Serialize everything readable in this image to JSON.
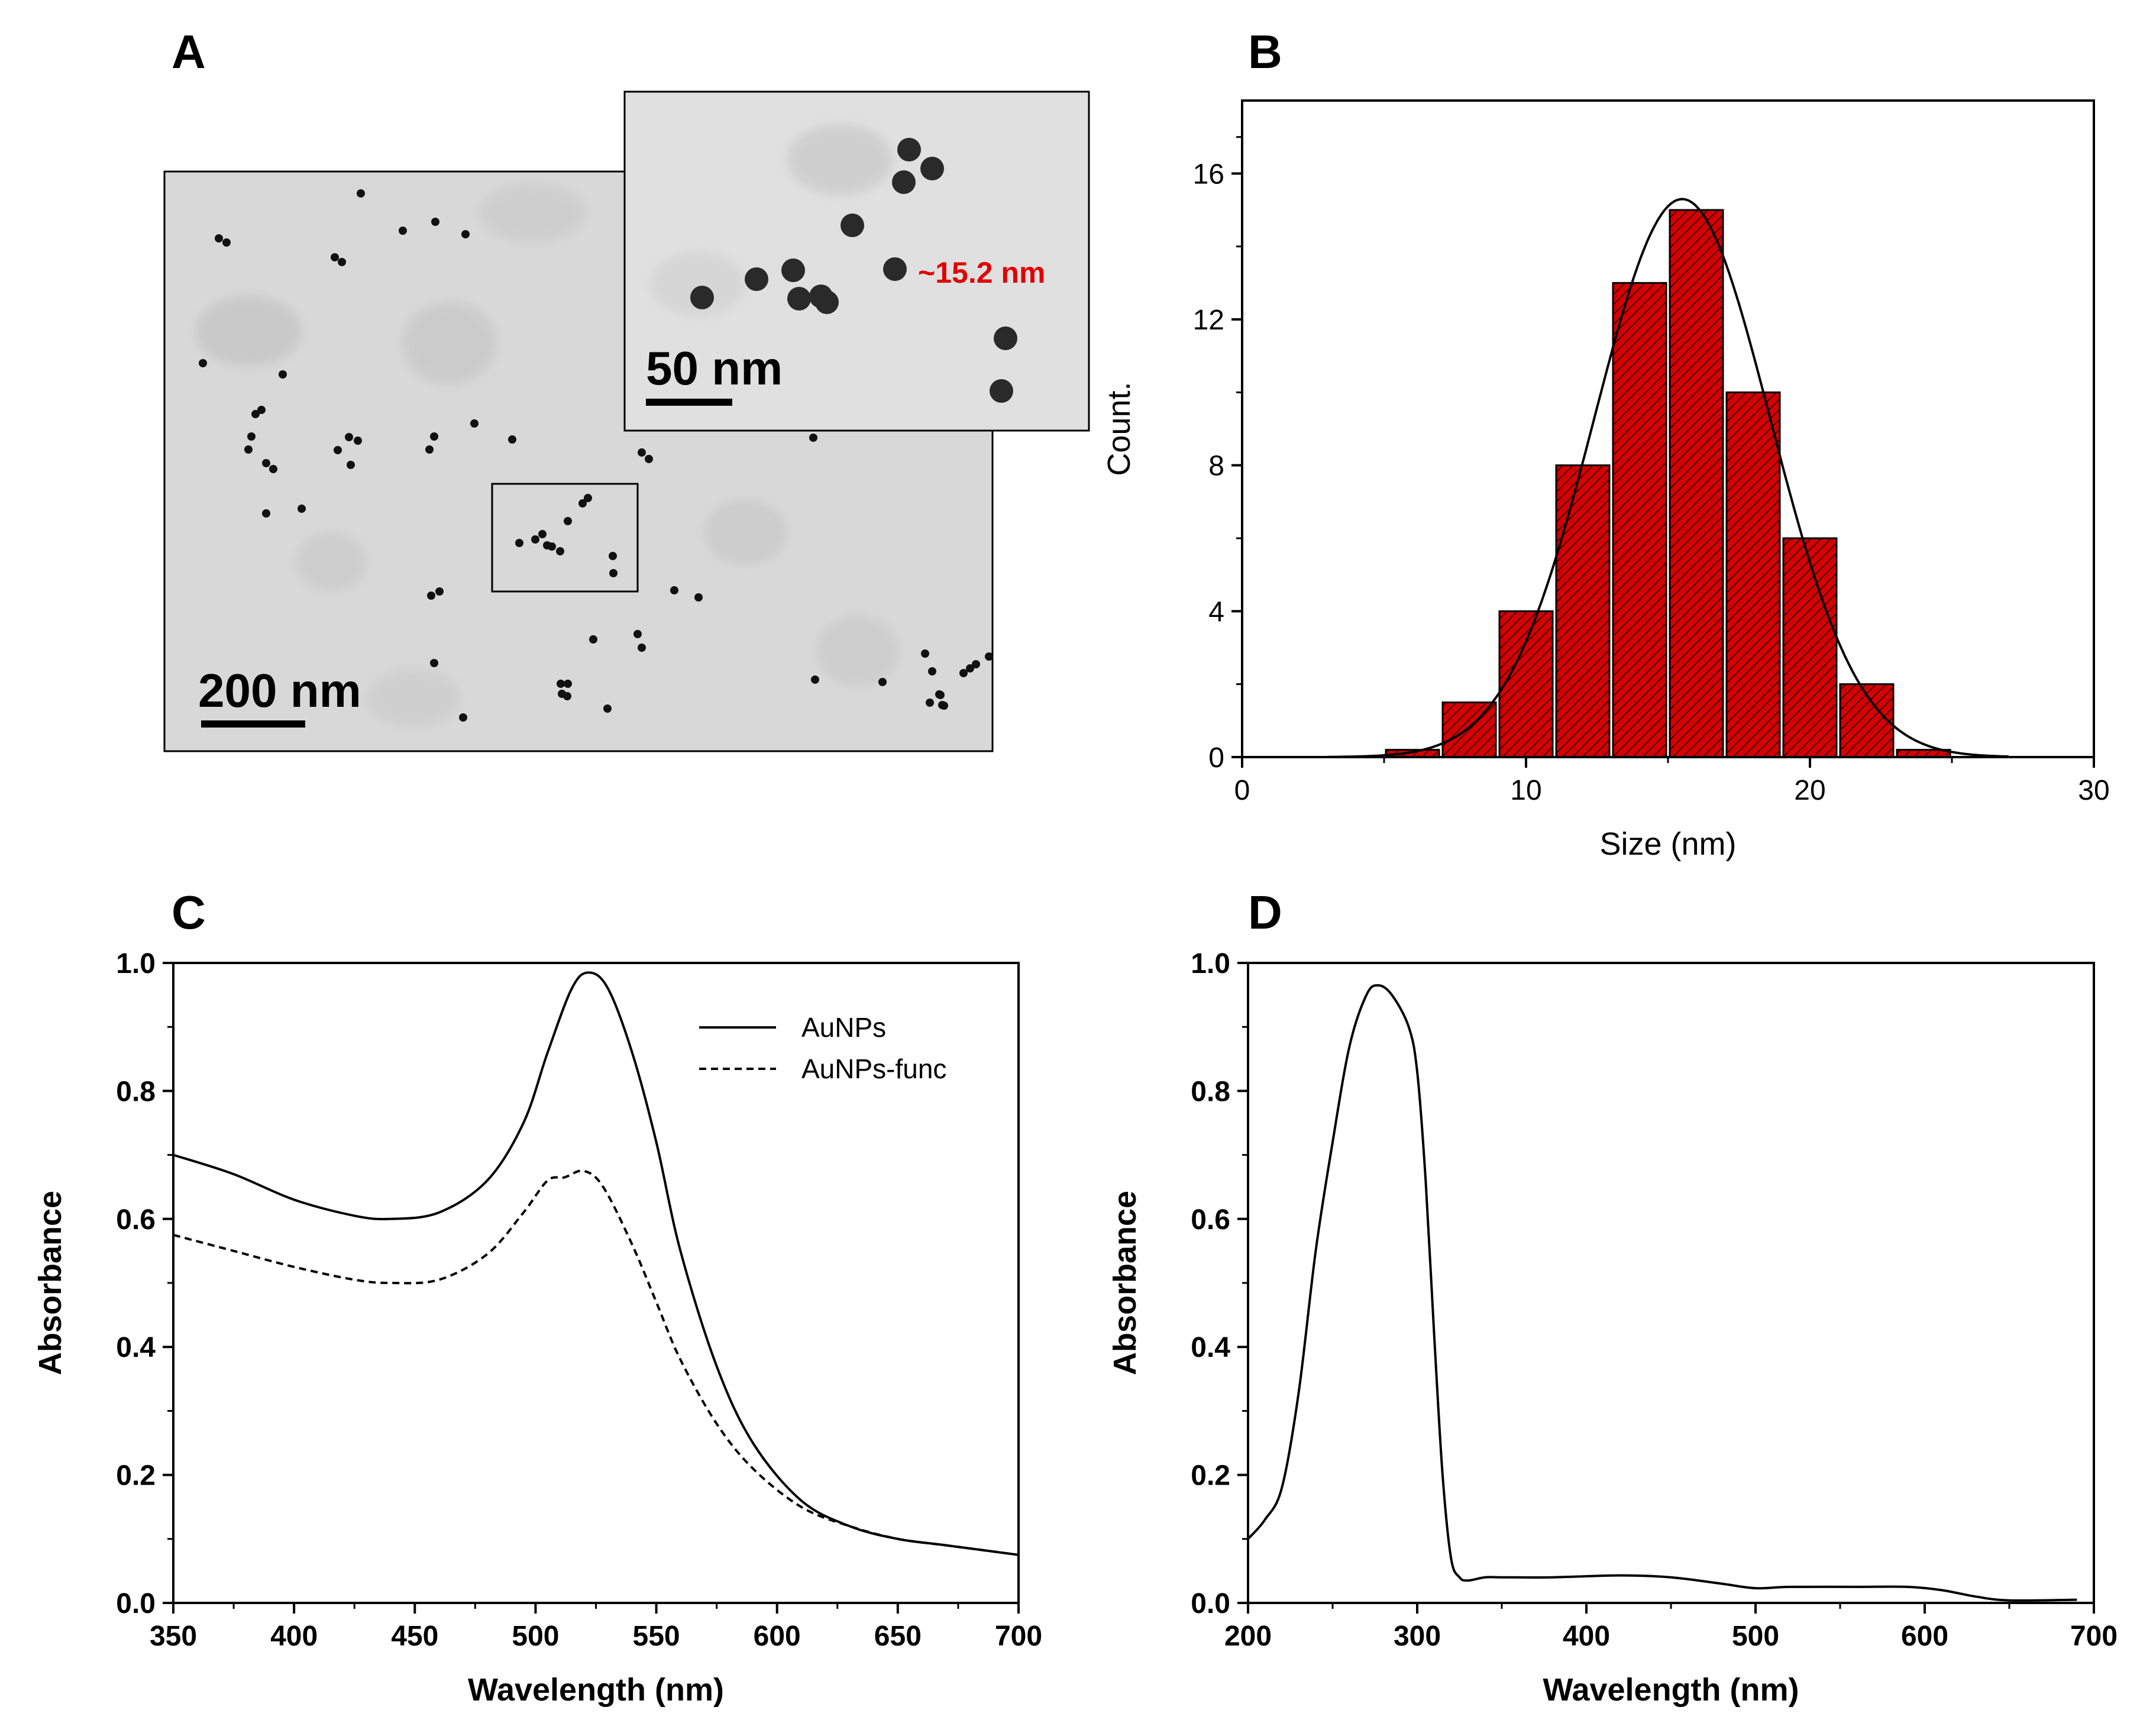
{
  "panels": {
    "a": {
      "letter": "A",
      "scale_bar_main": "200 nm",
      "scale_bar_inset": "50 nm",
      "particle_size_label": "~15.2 nm"
    },
    "b": {
      "letter": "B"
    },
    "c": {
      "letter": "C"
    },
    "d": {
      "letter": "D"
    }
  },
  "colors": {
    "bar_fill": "#d40000",
    "bar_stroke": "#000000",
    "line": "#000000",
    "size_label": "#e00000",
    "tem_background": "#d9d9d9"
  },
  "chart_data": [
    {
      "id": "B",
      "type": "bar",
      "title": "",
      "xlabel": "Size (nm)",
      "ylabel": "Count.",
      "xlim": [
        0,
        30
      ],
      "ylim": [
        0,
        18
      ],
      "xticks": [
        0,
        10,
        20,
        30
      ],
      "yticks": [
        0,
        4,
        8,
        12,
        16
      ],
      "bins": [
        {
          "start": 5,
          "end": 7,
          "count": 0.2
        },
        {
          "start": 7,
          "end": 9,
          "count": 1.5
        },
        {
          "start": 9,
          "end": 11,
          "count": 4
        },
        {
          "start": 11,
          "end": 13,
          "count": 8
        },
        {
          "start": 13,
          "end": 15,
          "count": 13
        },
        {
          "start": 15,
          "end": 17,
          "count": 15
        },
        {
          "start": 17,
          "end": 19,
          "count": 10
        },
        {
          "start": 19,
          "end": 21,
          "count": 6
        },
        {
          "start": 21,
          "end": 23,
          "count": 2
        },
        {
          "start": 23,
          "end": 25,
          "count": 0.2
        }
      ],
      "fit": {
        "type": "gaussian",
        "amplitude": 15.3,
        "mean": 15.5,
        "sigma": 3.1,
        "x_range": [
          3,
          27
        ]
      },
      "grid": false
    },
    {
      "id": "C",
      "type": "line",
      "xlabel": "Wavelength (nm)",
      "ylabel": "Absorbance",
      "xlim": [
        350,
        700
      ],
      "ylim": [
        0,
        1.0
      ],
      "xticks": [
        350,
        400,
        450,
        500,
        550,
        600,
        650,
        700
      ],
      "yticks": [
        0.0,
        0.2,
        0.4,
        0.6,
        0.8,
        1.0
      ],
      "legend_position": "top-right",
      "series": [
        {
          "name": "AuNPs",
          "style": "solid",
          "x": [
            350,
            375,
            400,
            425,
            440,
            460,
            480,
            495,
            505,
            515,
            522,
            530,
            540,
            550,
            560,
            575,
            590,
            610,
            630,
            650,
            670,
            700
          ],
          "y": [
            0.7,
            0.67,
            0.63,
            0.605,
            0.6,
            0.61,
            0.66,
            0.75,
            0.86,
            0.96,
            0.985,
            0.96,
            0.86,
            0.72,
            0.55,
            0.37,
            0.25,
            0.16,
            0.12,
            0.1,
            0.09,
            0.075
          ]
        },
        {
          "name": "AuNPs-func",
          "style": "dashed",
          "x": [
            350,
            375,
            400,
            425,
            440,
            460,
            480,
            495,
            505,
            512,
            520,
            528,
            540,
            550,
            560,
            575,
            590,
            610,
            630,
            650,
            670,
            700
          ],
          "y": [
            0.575,
            0.55,
            0.525,
            0.505,
            0.5,
            0.505,
            0.545,
            0.61,
            0.66,
            0.665,
            0.675,
            0.65,
            0.56,
            0.47,
            0.38,
            0.28,
            0.21,
            0.15,
            0.12,
            0.1,
            0.09,
            0.075
          ]
        }
      ]
    },
    {
      "id": "D",
      "type": "line",
      "xlabel": "Wavelength (nm)",
      "ylabel": "Absorbance",
      "xlim": [
        200,
        700
      ],
      "ylim": [
        0,
        1.0
      ],
      "xticks": [
        200,
        300,
        400,
        500,
        600,
        700
      ],
      "yticks": [
        0.0,
        0.2,
        0.4,
        0.6,
        0.8,
        1.0
      ],
      "series": [
        {
          "name": "",
          "style": "solid",
          "x": [
            200,
            210,
            220,
            230,
            240,
            250,
            260,
            270,
            277,
            285,
            295,
            300,
            305,
            310,
            315,
            320,
            325,
            330,
            340,
            350,
            380,
            420,
            450,
            480,
            500,
            520,
            560,
            590,
            610,
            630,
            650,
            690
          ],
          "y": [
            0.1,
            0.13,
            0.18,
            0.33,
            0.55,
            0.72,
            0.87,
            0.95,
            0.965,
            0.95,
            0.9,
            0.83,
            0.66,
            0.42,
            0.2,
            0.07,
            0.04,
            0.035,
            0.04,
            0.04,
            0.04,
            0.043,
            0.04,
            0.03,
            0.023,
            0.025,
            0.025,
            0.025,
            0.02,
            0.01,
            0.004,
            0.005
          ]
        }
      ]
    }
  ]
}
